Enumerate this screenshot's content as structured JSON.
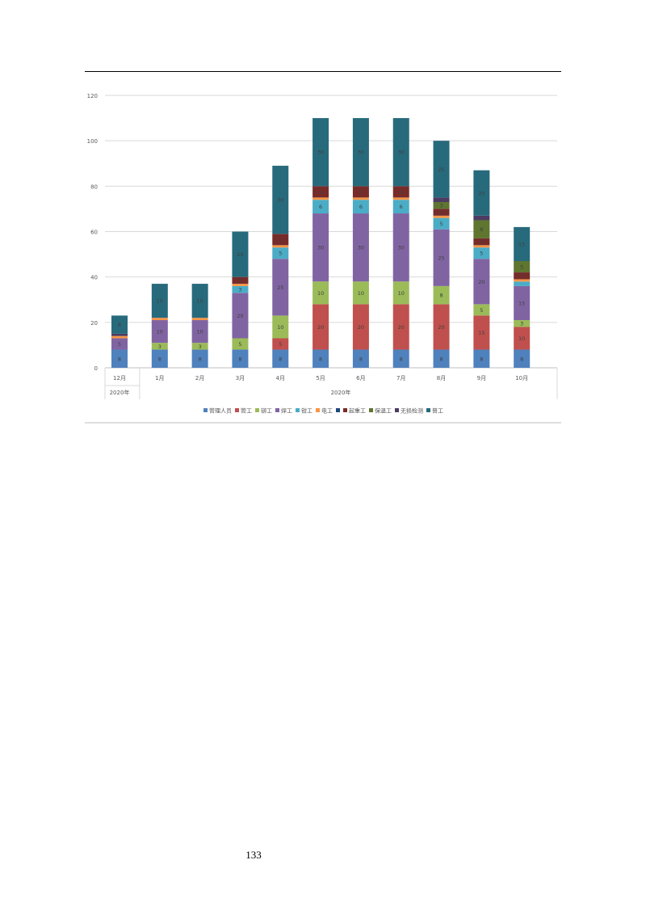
{
  "page_number": "133",
  "chart_data": {
    "type": "bar",
    "stacked": true,
    "title": "",
    "xlabel": "",
    "ylabel": "",
    "ylim": [
      0,
      120
    ],
    "yticks": [
      0,
      20,
      40,
      60,
      80,
      100,
      120
    ],
    "grid": true,
    "legend_position": "bottom",
    "categories": [
      "12月",
      "1月",
      "2月",
      "3月",
      "4月",
      "5月",
      "6月",
      "7月",
      "8月",
      "9月",
      "10月"
    ],
    "category_groups": [
      {
        "label": "2020年",
        "categories": [
          "12月"
        ]
      },
      {
        "label": "2020年",
        "categories": [
          "1月",
          "2月",
          "3月",
          "4月",
          "5月",
          "6月",
          "7月",
          "8月",
          "9月",
          "10月"
        ]
      }
    ],
    "series": [
      {
        "name": "管理人员",
        "color": "#4f81bd",
        "values": [
          8,
          8,
          8,
          8,
          8,
          8,
          8,
          8,
          8,
          8,
          8
        ]
      },
      {
        "name": "管工",
        "color": "#c0504d",
        "values": [
          0,
          0,
          0,
          0,
          5,
          20,
          20,
          20,
          20,
          15,
          10
        ]
      },
      {
        "name": "铆工",
        "color": "#9bbb59",
        "values": [
          0,
          3,
          3,
          5,
          10,
          10,
          10,
          10,
          8,
          5,
          3
        ]
      },
      {
        "name": "焊工",
        "color": "#8064a2",
        "values": [
          5,
          10,
          10,
          20,
          25,
          30,
          30,
          30,
          25,
          20,
          15
        ]
      },
      {
        "name": "钳工",
        "color": "#4bacc6",
        "values": [
          0,
          0,
          0,
          3,
          5,
          6,
          6,
          6,
          5,
          5,
          2
        ]
      },
      {
        "name": "电工",
        "color": "#f79646",
        "values": [
          1,
          1,
          1,
          1,
          1,
          1,
          1,
          1,
          1,
          1,
          1
        ]
      },
      {
        "name": "",
        "color": "#1f497d",
        "values": [
          0,
          0,
          0,
          0,
          0,
          0,
          0,
          0,
          0,
          0,
          0
        ]
      },
      {
        "name": "起重工",
        "color": "#772c2a",
        "values": [
          0,
          0,
          0,
          3,
          5,
          5,
          5,
          5,
          3,
          3,
          3
        ]
      },
      {
        "name": "保温工",
        "color": "#5f7530",
        "values": [
          0,
          0,
          0,
          0,
          0,
          0,
          0,
          0,
          3,
          8,
          5
        ]
      },
      {
        "name": "无损检测",
        "color": "#4d3b62",
        "values": [
          1,
          0,
          0,
          0,
          0,
          0,
          0,
          0,
          2,
          2,
          0
        ]
      },
      {
        "name": "普工",
        "color": "#276a7c",
        "values": [
          8,
          15,
          15,
          20,
          30,
          30,
          30,
          30,
          25,
          20,
          15
        ]
      }
    ]
  }
}
